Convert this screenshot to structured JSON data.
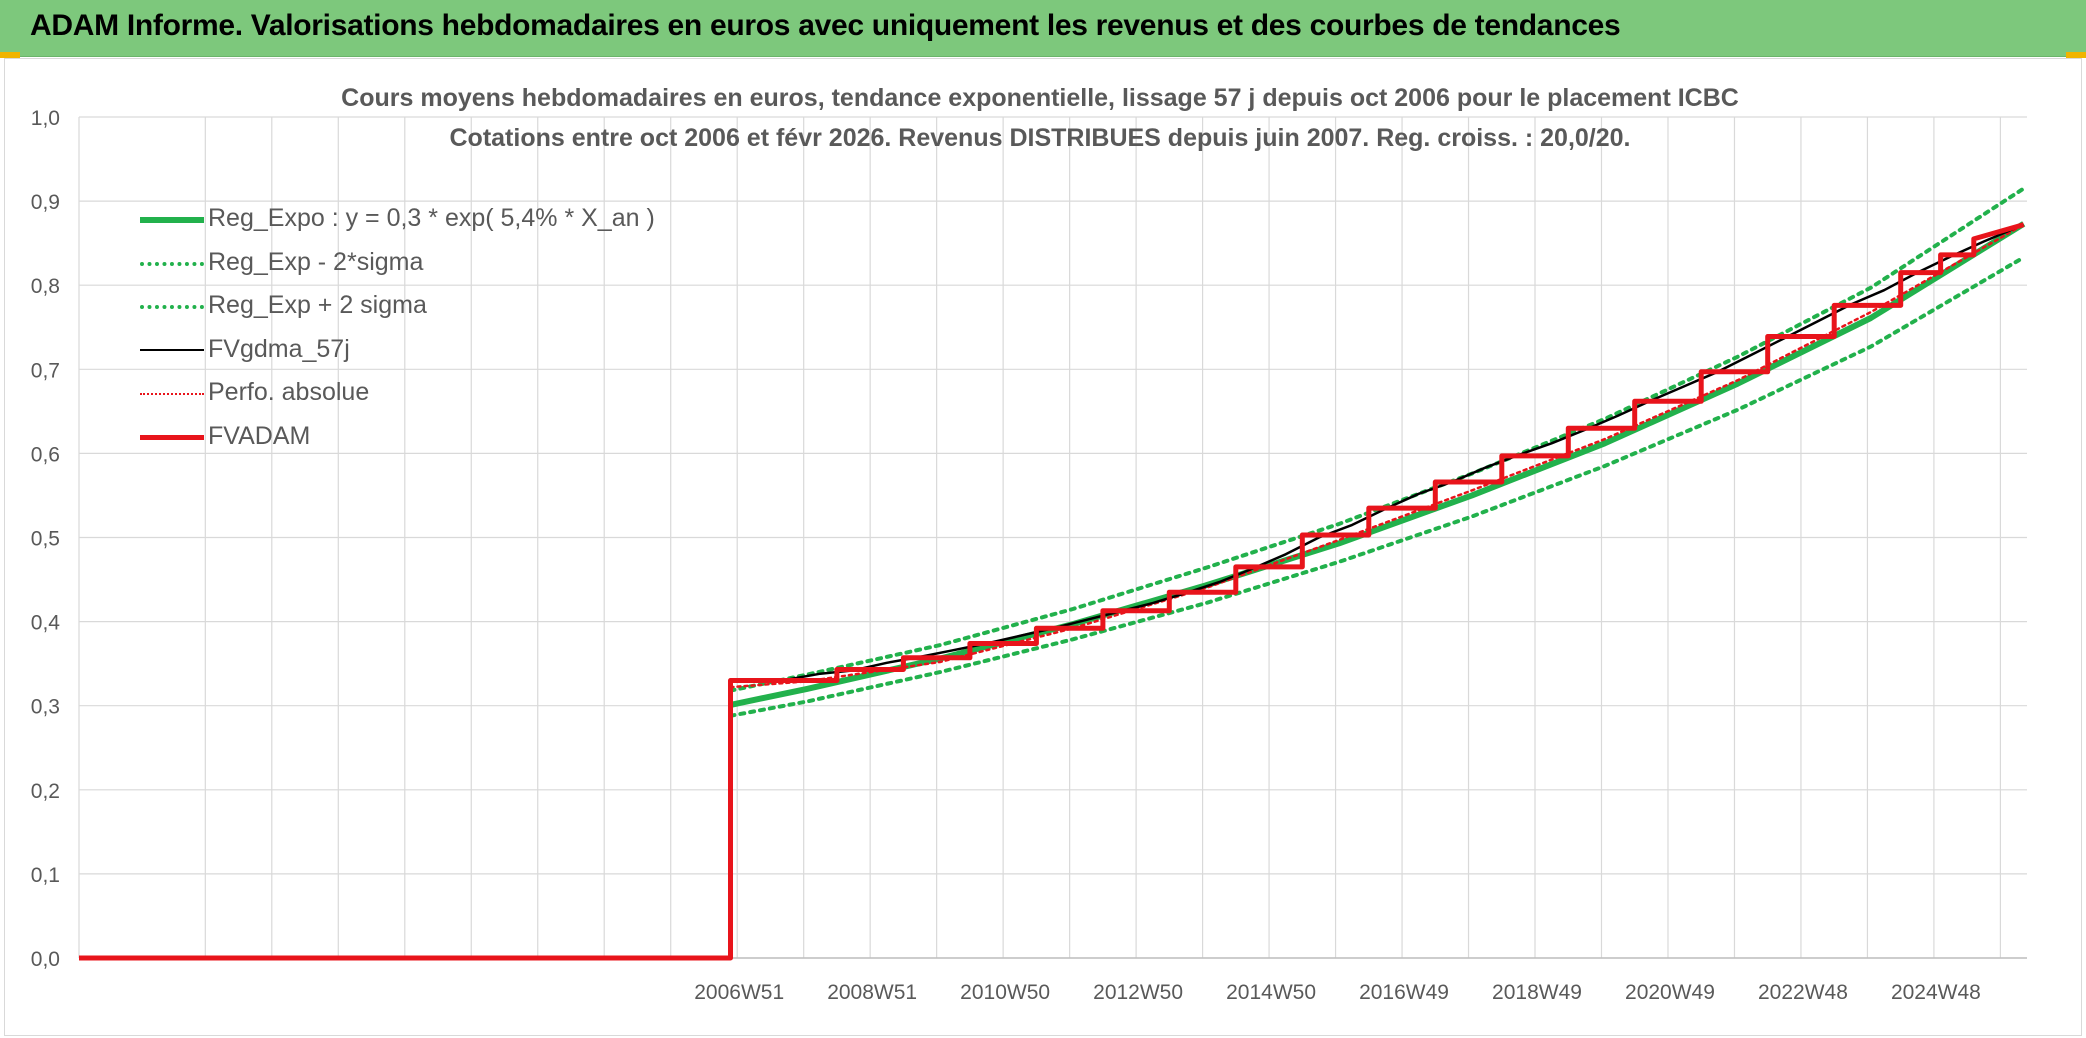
{
  "page": {
    "banner_title": "ADAM Informe. Valorisations hebdomadaires en euros avec uniquement les revenus et des courbes de tendances"
  },
  "colors": {
    "banner": "#7dc87c",
    "reg_expo": "#22b14c",
    "band": "#22b14c",
    "fvgdma": "#000000",
    "perfo": "#e8141b",
    "fvadam": "#e8141b",
    "grid": "#d9d9d9",
    "text": "#595959"
  },
  "chart_data": {
    "type": "line",
    "title": "Cours moyens hebdomadaires en euros, tendance exponentielle, lissage 57 j depuis oct 2006 pour le placement ICBC",
    "subtitle": "Cotations entre oct 2006 et févr 2026. Revenus DISTRIBUES depuis juin 2007. Reg. croiss. : 20,0/20.",
    "xlabel": "",
    "ylabel": "",
    "ylim": [
      0,
      1.0
    ],
    "xlim": [
      1997.05,
      2026.35
    ],
    "y_ticks": [
      "0,0",
      "0,1",
      "0,2",
      "0,3",
      "0,4",
      "0,5",
      "0,6",
      "0,7",
      "0,8",
      "0,9",
      "1,0"
    ],
    "x_ticks": [
      {
        "label": "2006W51",
        "year": 2006.95
      },
      {
        "label": "2008W51",
        "year": 2008.95
      },
      {
        "label": "2010W50",
        "year": 2010.95
      },
      {
        "label": "2012W50",
        "year": 2012.95
      },
      {
        "label": "2014W50",
        "year": 2014.95
      },
      {
        "label": "2016W49",
        "year": 2016.95
      },
      {
        "label": "2018W49",
        "year": 2018.95
      },
      {
        "label": "2020W49",
        "year": 2020.95
      },
      {
        "label": "2022W48",
        "year": 2022.95
      },
      {
        "label": "2024W48",
        "year": 2024.95
      }
    ],
    "grid": true,
    "legend_position": "top-left",
    "series": [
      {
        "name": "Reg_Expo : y = 0,3 * exp( 5,4% *  X_an )",
        "style": "solid-thick",
        "color": "#22b14c",
        "x": [
          2006.85,
          2008.0,
          2010.0,
          2012.0,
          2014.0,
          2016.0,
          2018.0,
          2020.0,
          2022.0,
          2024.0,
          2026.3
        ],
        "y": [
          0.301,
          0.32,
          0.356,
          0.397,
          0.443,
          0.493,
          0.55,
          0.612,
          0.683,
          0.761,
          0.873
        ]
      },
      {
        "name": "Reg_Exp - 2*sigma",
        "style": "dotted",
        "color": "#22b14c",
        "x": [
          2006.85,
          2008.0,
          2010.0,
          2012.0,
          2014.0,
          2016.0,
          2018.0,
          2020.0,
          2022.0,
          2024.0,
          2026.3
        ],
        "y": [
          0.288,
          0.305,
          0.34,
          0.379,
          0.422,
          0.471,
          0.525,
          0.585,
          0.652,
          0.727,
          0.833
        ]
      },
      {
        "name": "Reg_Exp + 2 sigma",
        "style": "dotted",
        "color": "#22b14c",
        "x": [
          2006.85,
          2008.0,
          2010.0,
          2012.0,
          2014.0,
          2016.0,
          2018.0,
          2020.0,
          2022.0,
          2024.0,
          2026.3
        ],
        "y": [
          0.318,
          0.337,
          0.372,
          0.415,
          0.464,
          0.516,
          0.576,
          0.641,
          0.715,
          0.797,
          0.915
        ]
      },
      {
        "name": "FVgdma_57j",
        "style": "solid",
        "color": "#000000",
        "x": [
          1997.05,
          2006.85,
          2006.86,
          2007.7,
          2008.2,
          2008.7,
          2009.2,
          2009.7,
          2010.2,
          2010.7,
          2011.2,
          2011.7,
          2012.2,
          2012.7,
          2013.2,
          2013.7,
          2014.2,
          2014.7,
          2015.2,
          2015.7,
          2016.2,
          2016.7,
          2017.2,
          2017.7,
          2018.2,
          2018.7,
          2019.2,
          2019.7,
          2020.2,
          2020.7,
          2021.2,
          2021.7,
          2022.2,
          2022.7,
          2023.2,
          2023.7,
          2024.2,
          2024.7,
          2025.2,
          2025.7,
          2026.3
        ],
        "y": [
          0.0,
          0.0,
          0.33,
          0.331,
          0.338,
          0.342,
          0.351,
          0.358,
          0.366,
          0.374,
          0.383,
          0.392,
          0.402,
          0.412,
          0.422,
          0.434,
          0.447,
          0.463,
          0.48,
          0.5,
          0.515,
          0.534,
          0.552,
          0.566,
          0.583,
          0.598,
          0.612,
          0.628,
          0.645,
          0.663,
          0.68,
          0.697,
          0.717,
          0.737,
          0.757,
          0.777,
          0.794,
          0.815,
          0.834,
          0.852,
          0.872
        ]
      },
      {
        "name": "Perfo. absolue",
        "style": "dotted",
        "color": "#e8141b",
        "x": [
          2006.85,
          2008.0,
          2010.0,
          2012.0,
          2014.0,
          2016.0,
          2018.0,
          2020.0,
          2022.0,
          2024.0,
          2026.3
        ],
        "y": [
          0.322,
          0.329,
          0.352,
          0.392,
          0.44,
          0.497,
          0.556,
          0.617,
          0.687,
          0.768,
          0.872
        ]
      },
      {
        "name": "FVADAM",
        "style": "solid-thick",
        "color": "#e8141b",
        "x": [
          1997.05,
          2006.85,
          2006.85,
          2008.45,
          2008.45,
          2009.45,
          2009.45,
          2010.45,
          2010.45,
          2011.45,
          2011.45,
          2012.45,
          2012.45,
          2013.45,
          2013.45,
          2014.45,
          2014.45,
          2015.45,
          2015.45,
          2016.45,
          2016.45,
          2017.45,
          2017.45,
          2018.45,
          2018.45,
          2019.45,
          2019.45,
          2020.45,
          2020.45,
          2021.45,
          2021.45,
          2022.45,
          2022.45,
          2023.45,
          2023.45,
          2024.45,
          2024.45,
          2025.05,
          2025.05,
          2025.55,
          2025.55,
          2026.3
        ],
        "y": [
          0.0,
          0.0,
          0.33,
          0.33,
          0.343,
          0.343,
          0.357,
          0.357,
          0.374,
          0.374,
          0.392,
          0.392,
          0.413,
          0.413,
          0.435,
          0.435,
          0.465,
          0.465,
          0.503,
          0.503,
          0.535,
          0.535,
          0.566,
          0.566,
          0.597,
          0.597,
          0.63,
          0.63,
          0.662,
          0.662,
          0.697,
          0.697,
          0.739,
          0.739,
          0.776,
          0.776,
          0.815,
          0.815,
          0.836,
          0.836,
          0.855,
          0.872
        ]
      }
    ]
  }
}
